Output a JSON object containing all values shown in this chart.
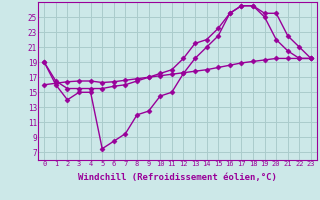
{
  "background_color": "#cce8e8",
  "grid_color": "#aacccc",
  "line_color": "#990099",
  "marker": "D",
  "marker_size": 2.5,
  "line_width": 1.0,
  "xlabel": "Windchill (Refroidissement éolien,°C)",
  "xlabel_fontsize": 6.5,
  "ylabel_ticks": [
    7,
    9,
    11,
    13,
    15,
    17,
    19,
    21,
    23,
    25
  ],
  "xlim": [
    -0.5,
    23.5
  ],
  "ylim": [
    6,
    27
  ],
  "xtick_labels": [
    "0",
    "1",
    "2",
    "3",
    "4",
    "5",
    "6",
    "7",
    "8",
    "9",
    "10",
    "11",
    "12",
    "13",
    "14",
    "15",
    "16",
    "17",
    "18",
    "19",
    "20",
    "21",
    "22",
    "23"
  ],
  "series": [
    {
      "x": [
        0,
        1,
        2,
        3,
        4,
        5,
        6,
        7,
        8,
        9,
        10,
        11,
        12,
        13,
        14,
        15,
        16,
        17,
        18,
        19,
        20,
        21,
        22,
        23
      ],
      "y": [
        19,
        16,
        14,
        15,
        15,
        7.5,
        8.5,
        9.5,
        12,
        12.5,
        14.5,
        15,
        17.5,
        19.5,
        21,
        22.5,
        25.5,
        26.5,
        26.5,
        25,
        22,
        20.5,
        19.5,
        19.5
      ]
    },
    {
      "x": [
        0,
        1,
        2,
        3,
        4,
        5,
        6,
        7,
        8,
        9,
        10,
        11,
        12,
        13,
        14,
        15,
        16,
        17,
        18,
        19,
        20,
        21,
        22,
        23
      ],
      "y": [
        16,
        16.2,
        16.4,
        16.5,
        16.5,
        16.3,
        16.4,
        16.6,
        16.8,
        17.0,
        17.2,
        17.4,
        17.6,
        17.8,
        18.0,
        18.3,
        18.6,
        18.9,
        19.1,
        19.3,
        19.5,
        19.5,
        19.5,
        19.5
      ]
    },
    {
      "x": [
        0,
        1,
        2,
        3,
        4,
        5,
        6,
        7,
        8,
        9,
        10,
        11,
        12,
        13,
        14,
        15,
        16,
        17,
        18,
        19,
        20,
        21,
        22,
        23
      ],
      "y": [
        19,
        16.5,
        15.5,
        15.5,
        15.5,
        15.5,
        15.8,
        16.0,
        16.5,
        17.0,
        17.5,
        18.0,
        19.5,
        21.5,
        22.0,
        23.5,
        25.5,
        26.5,
        26.5,
        25.5,
        25.5,
        22.5,
        21.0,
        19.5
      ]
    }
  ]
}
